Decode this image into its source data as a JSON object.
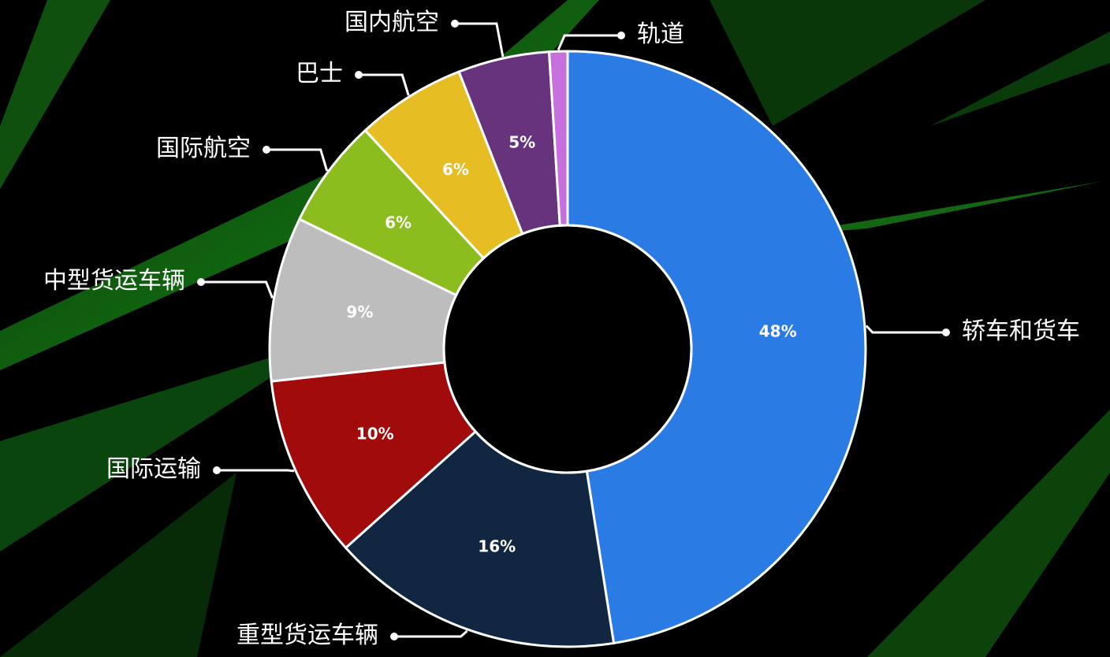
{
  "chart_data": {
    "type": "donut",
    "categories": [
      "轿车和货车",
      "重型货运车辆",
      "国际运输",
      "中型货运车辆",
      "国际航空",
      "巴士",
      "国内航空",
      "轨道"
    ],
    "values": [
      48,
      16,
      10,
      9,
      6,
      6,
      5,
      1
    ],
    "value_labels": [
      "48%",
      "16%",
      "10%",
      "9%",
      "6%",
      "6%",
      "5%",
      null
    ],
    "colors": [
      "#2a7be4",
      "#112741",
      "#a10b0b",
      "#bdbdbd",
      "#8bbd1e",
      "#e6bd22",
      "#67337d",
      "#c86fde"
    ]
  }
}
